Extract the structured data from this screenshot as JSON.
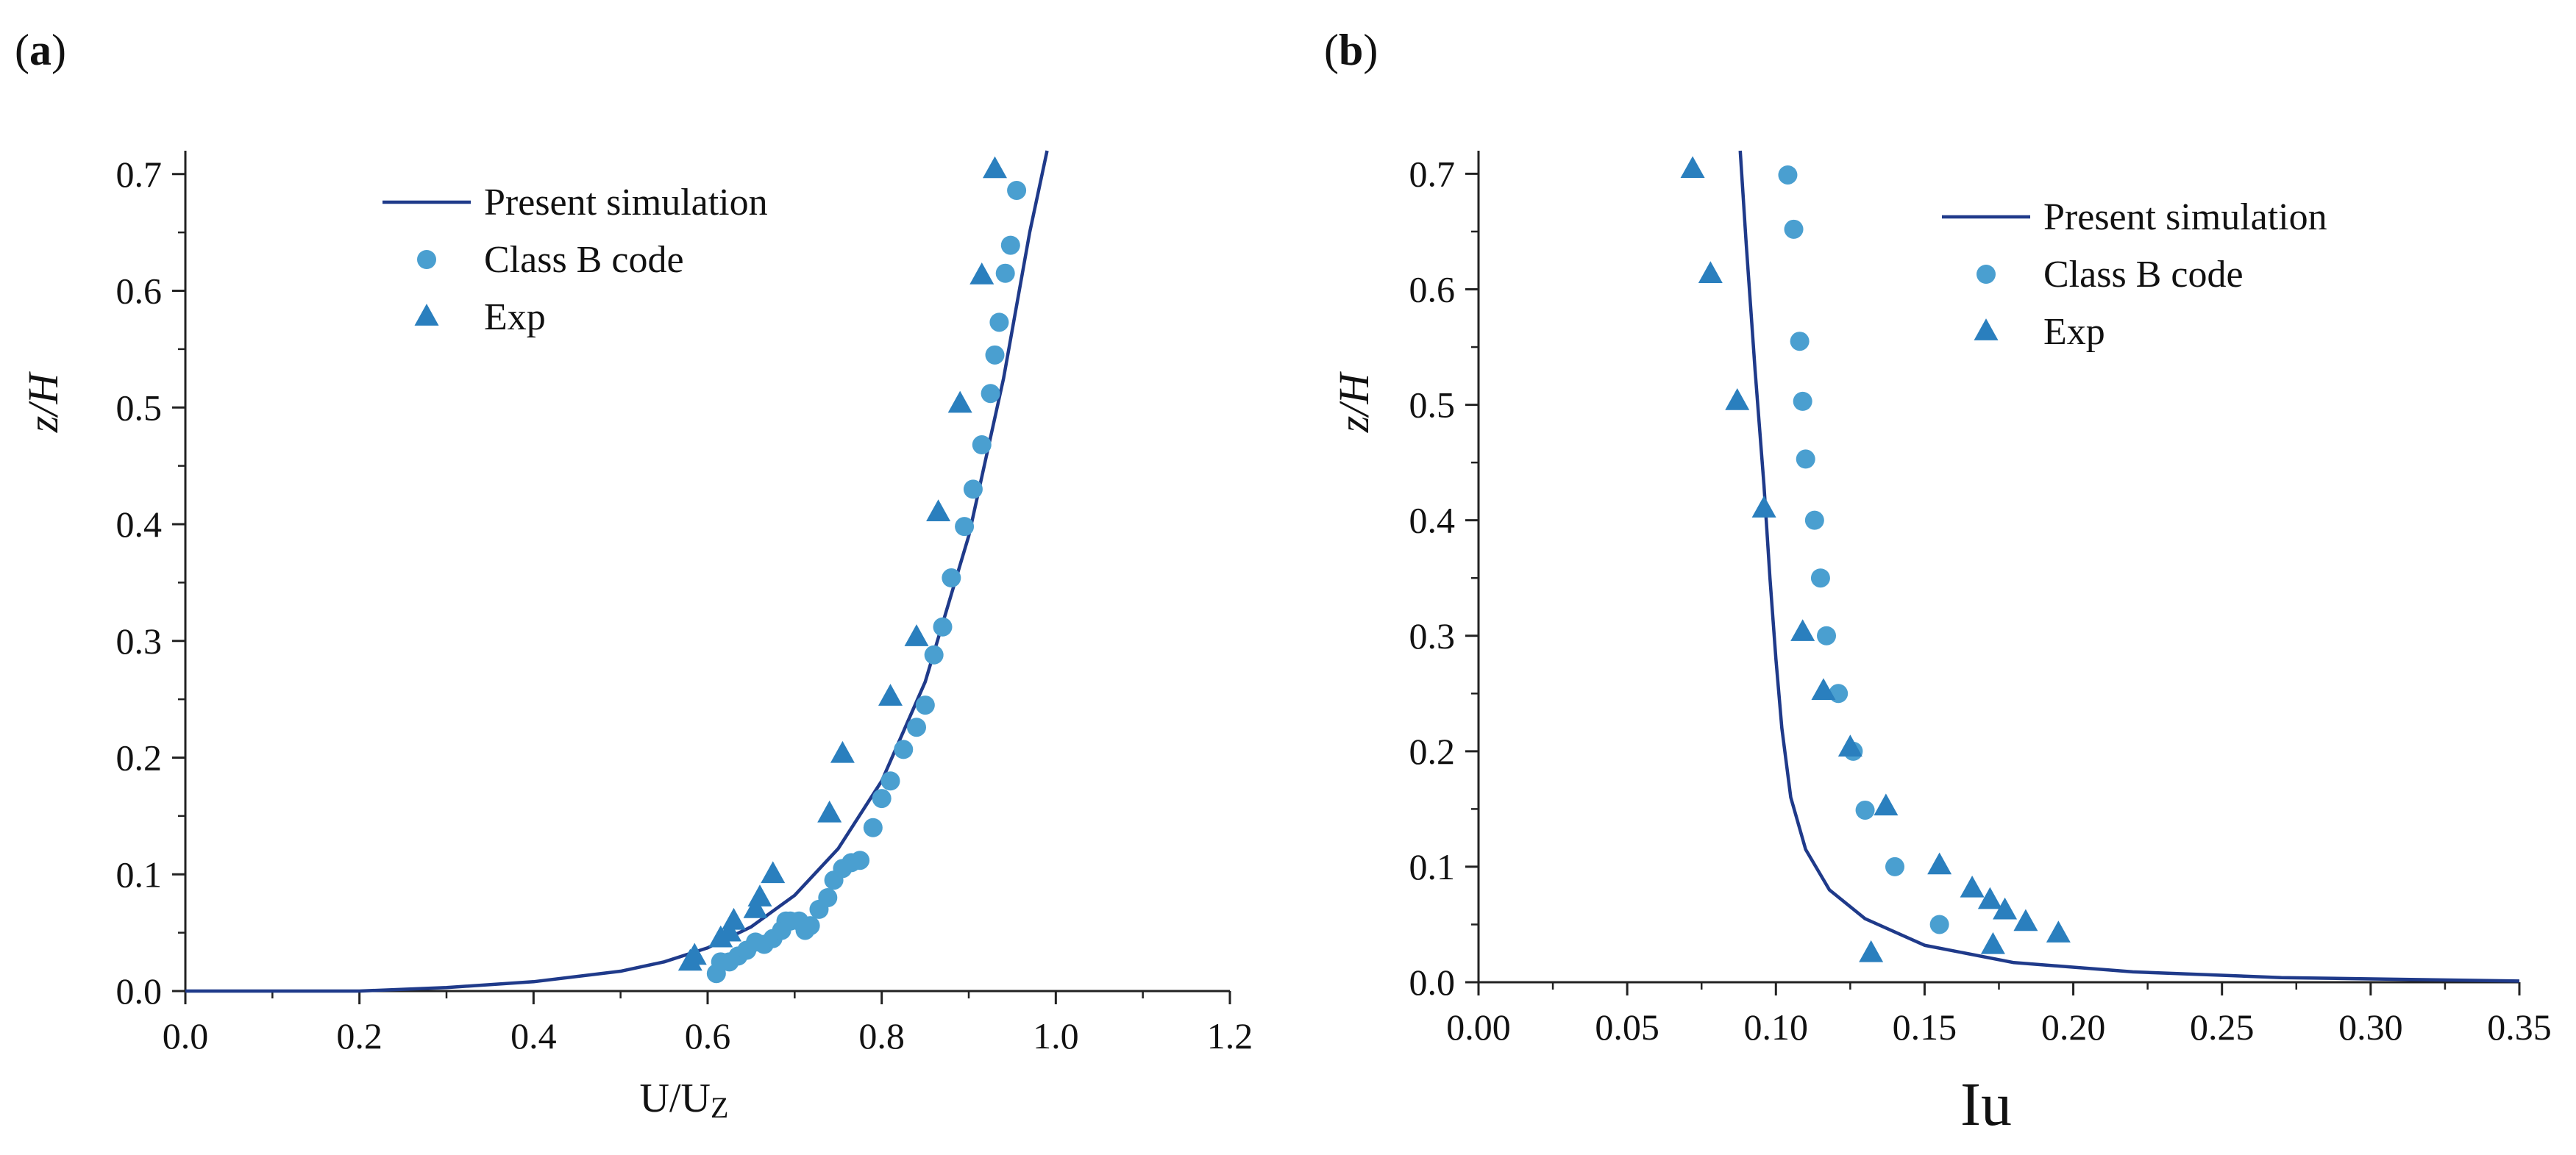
{
  "panels": [
    {
      "id": "a",
      "label": "(a)"
    },
    {
      "id": "b",
      "label": "(b)"
    }
  ],
  "colors": {
    "line": "#1f3a8a",
    "class_b": "#4a9fd0",
    "exp": "#2a7fbe",
    "axis": "#222222",
    "background": "#ffffff"
  },
  "chart_data": [
    {
      "id": "a",
      "type": "scatter",
      "title": "",
      "xlabel": "U/U",
      "xlabel_sub": "Z",
      "ylabel": "z/H",
      "xlim": [
        0.0,
        1.2
      ],
      "ylim": [
        0.0,
        0.72
      ],
      "xticks": [
        0.0,
        0.2,
        0.4,
        0.6,
        0.8,
        1.0,
        1.2
      ],
      "xtick_labels": [
        "0.0",
        "0.2",
        "0.4",
        "0.6",
        "0.8",
        "1.0",
        "1.2"
      ],
      "yticks": [
        0.0,
        0.1,
        0.2,
        0.3,
        0.4,
        0.5,
        0.6,
        0.7
      ],
      "ytick_labels": [
        "0.0",
        "0.1",
        "0.2",
        "0.3",
        "0.4",
        "0.5",
        "0.6",
        "0.7"
      ],
      "legend": {
        "position": "top-left",
        "entries": [
          "Present simulation",
          "Class B code",
          "Exp"
        ]
      },
      "series": [
        {
          "name": "Present simulation",
          "kind": "line",
          "x": [
            0.0,
            0.2,
            0.3,
            0.4,
            0.5,
            0.55,
            0.6,
            0.65,
            0.7,
            0.75,
            0.8,
            0.85,
            0.9,
            0.94,
            0.97,
            0.99
          ],
          "y": [
            0.0,
            0.0,
            0.003,
            0.008,
            0.017,
            0.025,
            0.037,
            0.055,
            0.082,
            0.122,
            0.18,
            0.265,
            0.39,
            0.525,
            0.65,
            0.72
          ]
        },
        {
          "name": "Class B code",
          "kind": "circle",
          "x": [
            0.61,
            0.615,
            0.625,
            0.635,
            0.645,
            0.655,
            0.665,
            0.675,
            0.685,
            0.69,
            0.695,
            0.705,
            0.712,
            0.718,
            0.728,
            0.738,
            0.745,
            0.755,
            0.765,
            0.775,
            0.79,
            0.8,
            0.81,
            0.825,
            0.84,
            0.85,
            0.86,
            0.87,
            0.88,
            0.895,
            0.905,
            0.915,
            0.925,
            0.93,
            0.935,
            0.942,
            0.948,
            0.955
          ],
          "y": [
            0.015,
            0.025,
            0.025,
            0.03,
            0.035,
            0.042,
            0.04,
            0.045,
            0.052,
            0.06,
            0.06,
            0.06,
            0.052,
            0.056,
            0.07,
            0.08,
            0.095,
            0.105,
            0.11,
            0.112,
            0.14,
            0.165,
            0.18,
            0.207,
            0.226,
            0.245,
            0.288,
            0.312,
            0.354,
            0.398,
            0.43,
            0.468,
            0.512,
            0.545,
            0.573,
            0.615,
            0.639,
            0.686
          ]
        },
        {
          "name": "Exp",
          "kind": "triangle",
          "x": [
            0.58,
            0.585,
            0.615,
            0.625,
            0.63,
            0.655,
            0.66,
            0.675,
            0.74,
            0.755,
            0.81,
            0.84,
            0.865,
            0.89,
            0.915,
            0.93
          ],
          "y": [
            0.025,
            0.03,
            0.045,
            0.05,
            0.06,
            0.07,
            0.08,
            0.1,
            0.152,
            0.203,
            0.252,
            0.303,
            0.41,
            0.503,
            0.613,
            0.704
          ]
        }
      ]
    },
    {
      "id": "b",
      "type": "scatter",
      "title": "",
      "xlabel": "Iu",
      "ylabel": "z/H",
      "xlim": [
        0.0,
        0.35
      ],
      "ylim": [
        0.0,
        0.72
      ],
      "xticks": [
        0.0,
        0.05,
        0.1,
        0.15,
        0.2,
        0.25,
        0.3,
        0.35
      ],
      "xtick_labels": [
        "0.00",
        "0.05",
        "0.10",
        "0.15",
        "0.20",
        "0.25",
        "0.30",
        "0.35"
      ],
      "yticks": [
        0.0,
        0.1,
        0.2,
        0.3,
        0.4,
        0.5,
        0.6,
        0.7
      ],
      "ytick_labels": [
        "0.0",
        "0.1",
        "0.2",
        "0.3",
        "0.4",
        "0.5",
        "0.6",
        "0.7"
      ],
      "legend": {
        "position": "top-right",
        "entries": [
          "Present simulation",
          "Class B code",
          "Exp"
        ]
      },
      "series": [
        {
          "name": "Present simulation",
          "kind": "line",
          "x": [
            0.088,
            0.09,
            0.093,
            0.096,
            0.098,
            0.1,
            0.102,
            0.105,
            0.11,
            0.118,
            0.13,
            0.15,
            0.18,
            0.22,
            0.27,
            0.35
          ],
          "y": [
            0.72,
            0.64,
            0.53,
            0.43,
            0.35,
            0.28,
            0.22,
            0.16,
            0.115,
            0.08,
            0.055,
            0.032,
            0.017,
            0.009,
            0.004,
            0.001
          ]
        },
        {
          "name": "Class B code",
          "kind": "circle",
          "x": [
            0.104,
            0.106,
            0.108,
            0.109,
            0.11,
            0.113,
            0.115,
            0.117,
            0.121,
            0.126,
            0.13,
            0.14,
            0.155
          ],
          "y": [
            0.699,
            0.652,
            0.555,
            0.503,
            0.453,
            0.4,
            0.35,
            0.3,
            0.25,
            0.2,
            0.149,
            0.1,
            0.05
          ]
        },
        {
          "name": "Exp",
          "kind": "triangle",
          "x": [
            0.072,
            0.078,
            0.087,
            0.096,
            0.109,
            0.116,
            0.125,
            0.137,
            0.155,
            0.166,
            0.172,
            0.177,
            0.184,
            0.195,
            0.132,
            0.173
          ],
          "y": [
            0.704,
            0.613,
            0.503,
            0.41,
            0.303,
            0.252,
            0.203,
            0.152,
            0.101,
            0.081,
            0.071,
            0.062,
            0.052,
            0.042,
            0.025,
            0.032
          ]
        }
      ]
    }
  ]
}
